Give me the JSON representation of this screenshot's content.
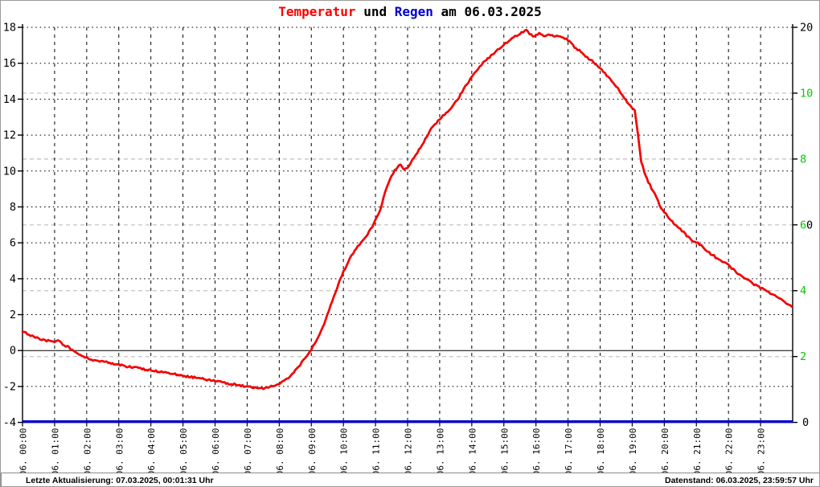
{
  "title": {
    "part1": "Temperatur",
    "part2": " und ",
    "part3": "Regen",
    "part4": " am 06.03.2025"
  },
  "status_bar": {
    "left": "Letzte Aktualisierung: 07.03.2025, 00:01:31 Uhr",
    "right": "Datenstand: 06.03.2025, 23:59:57 Uhr"
  },
  "colors": {
    "temperature_line": "#f40000",
    "rain_line": "#0000cc",
    "green_axis_labels": "#00cc00",
    "gray_gridlines": "#c9c9c9",
    "black": "#000000"
  },
  "chart_data": {
    "type": "line",
    "title": "Temperatur und Regen am 06.03.2025",
    "grid": {
      "vertical_dashed_hour_lines": true,
      "horizontal_dotted_temp_lines": true,
      "horizontal_gray_dashed_rain_lines": true
    },
    "x_axis": {
      "hours_range": [
        0,
        24
      ],
      "tick_labels": [
        "06. 00:00",
        "06. 01:00",
        "06. 02:00",
        "06. 03:00",
        "06. 04:00",
        "06. 05:00",
        "06. 06:00",
        "06. 07:00",
        "06. 08:00",
        "06. 09:00",
        "06. 10:00",
        "06. 11:00",
        "06. 12:00",
        "06. 13:00",
        "06. 14:00",
        "06. 15:00",
        "06. 16:00",
        "06. 17:00",
        "06. 18:00",
        "06. 19:00",
        "06. 20:00",
        "06. 21:00",
        "06. 22:00",
        "06. 23:00"
      ]
    },
    "left_axis": {
      "range": [
        -4,
        18
      ],
      "tick_step": 2,
      "tick_labels": [
        18,
        16,
        14,
        12,
        10,
        8,
        6,
        4,
        2,
        0,
        -2,
        -4
      ],
      "zero_line_solid": true
    },
    "right_axis_green": {
      "range": [
        0,
        12
      ],
      "tick_labels": [
        10,
        8,
        6,
        4,
        2
      ]
    },
    "right_axis_black": {
      "range": [
        0,
        20
      ],
      "tick_labels": [
        20,
        10,
        0
      ]
    },
    "series": [
      {
        "name": "Temperatur",
        "axis": "left",
        "color": "#f40000",
        "points": [
          [
            0.0,
            1.05
          ],
          [
            0.2,
            0.9
          ],
          [
            0.4,
            0.75
          ],
          [
            0.6,
            0.62
          ],
          [
            0.8,
            0.55
          ],
          [
            1.0,
            0.5
          ],
          [
            1.1,
            0.55
          ],
          [
            1.3,
            0.32
          ],
          [
            1.5,
            0.1
          ],
          [
            1.7,
            -0.12
          ],
          [
            1.9,
            -0.32
          ],
          [
            2.1,
            -0.48
          ],
          [
            2.3,
            -0.57
          ],
          [
            2.5,
            -0.62
          ],
          [
            2.8,
            -0.72
          ],
          [
            3.0,
            -0.8
          ],
          [
            3.3,
            -0.9
          ],
          [
            3.6,
            -0.98
          ],
          [
            3.9,
            -1.07
          ],
          [
            4.2,
            -1.16
          ],
          [
            4.5,
            -1.25
          ],
          [
            4.8,
            -1.34
          ],
          [
            5.1,
            -1.43
          ],
          [
            5.4,
            -1.52
          ],
          [
            5.7,
            -1.6
          ],
          [
            6.0,
            -1.7
          ],
          [
            6.3,
            -1.8
          ],
          [
            6.6,
            -1.88
          ],
          [
            6.9,
            -1.97
          ],
          [
            7.1,
            -2.03
          ],
          [
            7.3,
            -2.09
          ],
          [
            7.5,
            -2.1
          ],
          [
            7.7,
            -2.03
          ],
          [
            7.9,
            -1.92
          ],
          [
            8.1,
            -1.75
          ],
          [
            8.3,
            -1.5
          ],
          [
            8.5,
            -1.12
          ],
          [
            8.7,
            -0.68
          ],
          [
            8.9,
            -0.2
          ],
          [
            9.0,
            0.05
          ],
          [
            9.2,
            0.7
          ],
          [
            9.4,
            1.5
          ],
          [
            9.6,
            2.5
          ],
          [
            9.8,
            3.5
          ],
          [
            10.0,
            4.4
          ],
          [
            10.2,
            5.1
          ],
          [
            10.4,
            5.7
          ],
          [
            10.55,
            6.0
          ],
          [
            10.7,
            6.35
          ],
          [
            10.9,
            6.9
          ],
          [
            11.1,
            7.6
          ],
          [
            11.3,
            8.8
          ],
          [
            11.5,
            9.75
          ],
          [
            11.65,
            10.15
          ],
          [
            11.78,
            10.35
          ],
          [
            11.9,
            10.1
          ],
          [
            12.0,
            10.15
          ],
          [
            12.15,
            10.6
          ],
          [
            12.3,
            11.0
          ],
          [
            12.5,
            11.6
          ],
          [
            12.65,
            12.1
          ],
          [
            12.8,
            12.5
          ],
          [
            13.0,
            12.9
          ],
          [
            13.2,
            13.25
          ],
          [
            13.4,
            13.6
          ],
          [
            13.6,
            14.1
          ],
          [
            13.8,
            14.7
          ],
          [
            14.0,
            15.2
          ],
          [
            14.2,
            15.7
          ],
          [
            14.4,
            16.1
          ],
          [
            14.6,
            16.4
          ],
          [
            14.8,
            16.75
          ],
          [
            15.0,
            17.0
          ],
          [
            15.2,
            17.35
          ],
          [
            15.4,
            17.55
          ],
          [
            15.6,
            17.75
          ],
          [
            15.7,
            17.85
          ],
          [
            15.8,
            17.6
          ],
          [
            15.95,
            17.5
          ],
          [
            16.1,
            17.65
          ],
          [
            16.25,
            17.5
          ],
          [
            16.4,
            17.6
          ],
          [
            16.55,
            17.5
          ],
          [
            16.7,
            17.5
          ],
          [
            16.85,
            17.4
          ],
          [
            17.0,
            17.3
          ],
          [
            17.2,
            16.9
          ],
          [
            17.35,
            16.7
          ],
          [
            17.5,
            16.45
          ],
          [
            17.65,
            16.25
          ],
          [
            17.8,
            16.05
          ],
          [
            18.0,
            15.75
          ],
          [
            18.2,
            15.35
          ],
          [
            18.4,
            14.95
          ],
          [
            18.6,
            14.5
          ],
          [
            18.8,
            13.95
          ],
          [
            19.0,
            13.5
          ],
          [
            19.08,
            13.35
          ],
          [
            19.18,
            12.0
          ],
          [
            19.28,
            10.5
          ],
          [
            19.38,
            9.95
          ],
          [
            19.5,
            9.4
          ],
          [
            19.7,
            8.7
          ],
          [
            19.9,
            7.95
          ],
          [
            20.1,
            7.5
          ],
          [
            20.3,
            7.05
          ],
          [
            20.5,
            6.75
          ],
          [
            20.7,
            6.4
          ],
          [
            20.9,
            6.1
          ],
          [
            21.05,
            6.0
          ],
          [
            21.2,
            5.75
          ],
          [
            21.4,
            5.45
          ],
          [
            21.6,
            5.2
          ],
          [
            21.8,
            4.95
          ],
          [
            22.0,
            4.75
          ],
          [
            22.2,
            4.45
          ],
          [
            22.4,
            4.15
          ],
          [
            22.6,
            3.95
          ],
          [
            22.8,
            3.7
          ],
          [
            23.0,
            3.5
          ],
          [
            23.2,
            3.3
          ],
          [
            23.4,
            3.1
          ],
          [
            23.6,
            2.9
          ],
          [
            23.8,
            2.65
          ],
          [
            23.97,
            2.45
          ]
        ]
      },
      {
        "name": "Regen",
        "axis": "right_green",
        "color": "#0000cc",
        "points": [
          [
            0,
            0
          ],
          [
            24,
            0
          ]
        ]
      }
    ]
  }
}
